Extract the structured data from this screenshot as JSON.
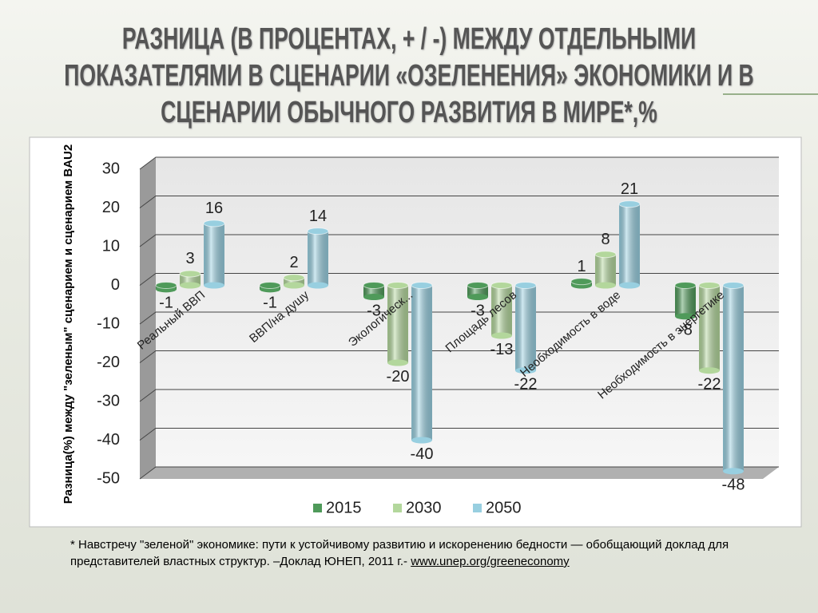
{
  "chart_data": {
    "type": "bar",
    "title": "РАЗНИЦА (В ПРОЦЕНТАХ, + / -) МЕЖДУ ОТДЕЛЬНЫМИ ПОКАЗАТЕЛЯМИ В СЦЕНАРИИ «ОЗЕЛЕНЕНИЯ» ЭКОНОМИКИ И В СЦЕНАРИИ ОБЫЧНОГО РАЗВИТИЯ В МИРЕ*,%",
    "y_label": "Разница(%) между \"зеленым\" сценарием и сценарием BAU2",
    "categories": [
      "Реальный ВВП",
      "ВВП/на душу",
      "Экологическ...",
      "Площадь лесов",
      "Необходимость в воде",
      "Необходимость в энергетике"
    ],
    "series": [
      {
        "name": "2015",
        "color": "#4f9a5a",
        "values": [
          -1,
          -1,
          -3,
          -3,
          1,
          -8
        ]
      },
      {
        "name": "2030",
        "color": "#b3d79c",
        "values": [
          3,
          2,
          -20,
          -13,
          8,
          -22
        ]
      },
      {
        "name": "2050",
        "color": "#98cfe0",
        "values": [
          16,
          14,
          -40,
          -22,
          21,
          -48
        ]
      }
    ],
    "ylim": [
      -50,
      30
    ],
    "yticks": [
      -50,
      -40,
      -30,
      -20,
      -10,
      0,
      10,
      20,
      30
    ],
    "grid": true
  },
  "footnote": {
    "text": "*  Навстречу \"зеленой\" экономике: пути к устойчивому развитию и искоренению бедности — обобщающий доклад для представителей властных структур. –Доклад ЮНЕП, 2011 г.-",
    "link": "www.unep.org/greeneconomy"
  }
}
